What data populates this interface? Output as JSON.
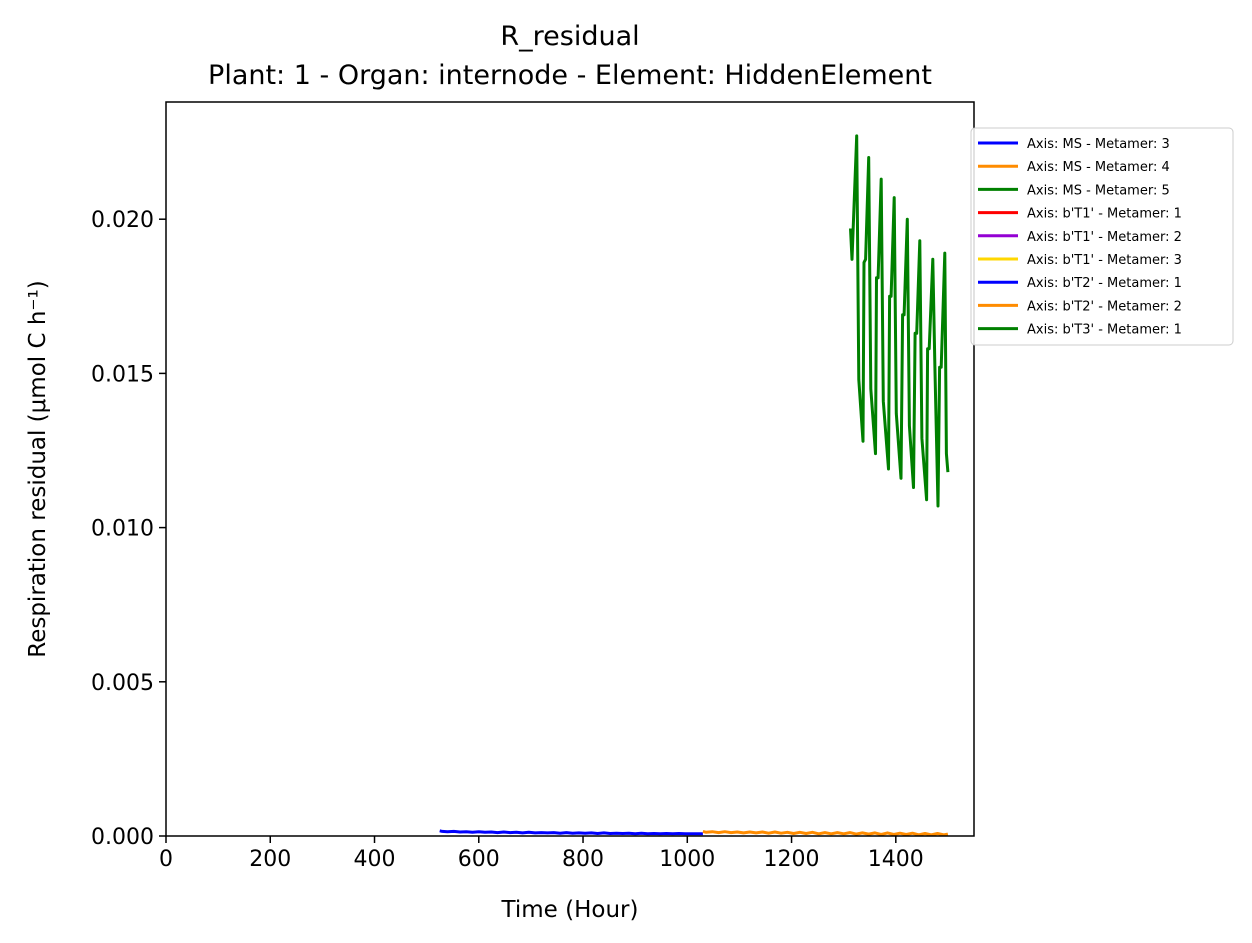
{
  "chart_data": {
    "type": "line",
    "title": "R_residual",
    "subtitle": "Plant: 1 - Organ: internode - Element: HiddenElement",
    "xlabel": "Time (Hour)",
    "ylabel": "Respiration residual (μmol C h⁻¹)",
    "xlim": [
      0,
      1550
    ],
    "ylim": [
      0,
      0.0238
    ],
    "xticks": [
      0,
      200,
      400,
      600,
      800,
      1000,
      1200,
      1400
    ],
    "xtick_labels": [
      "0",
      "200",
      "400",
      "600",
      "800",
      "1000",
      "1200",
      "1400"
    ],
    "yticks": [
      0,
      0.005,
      0.01,
      0.015,
      0.02
    ],
    "ytick_labels": [
      "0.000",
      "0.005",
      "0.010",
      "0.015",
      "0.020"
    ],
    "grid": false,
    "legend_position": "outside top-right",
    "series": [
      {
        "name": "Axis: MS - Metamer: 3",
        "color": "#0000ff",
        "points": [
          [
            525,
            0.00017
          ],
          [
            530,
            0.00015
          ],
          [
            540,
            0.00014
          ],
          [
            552,
            0.00015
          ],
          [
            564,
            0.00013
          ],
          [
            576,
            0.00014
          ],
          [
            588,
            0.00012
          ],
          [
            600,
            0.00014
          ],
          [
            612,
            0.00012
          ],
          [
            624,
            0.00013
          ],
          [
            636,
            0.00011
          ],
          [
            648,
            0.00013
          ],
          [
            660,
            0.00011
          ],
          [
            672,
            0.00012
          ],
          [
            684,
            0.0001
          ],
          [
            696,
            0.00012
          ],
          [
            708,
            0.0001
          ],
          [
            720,
            0.00011
          ],
          [
            732,
            0.0001
          ],
          [
            744,
            0.00011
          ],
          [
            756,
            9e-05
          ],
          [
            768,
            0.00011
          ],
          [
            780,
            9e-05
          ],
          [
            792,
            0.0001
          ],
          [
            804,
            9e-05
          ],
          [
            816,
            0.0001
          ],
          [
            828,
            8e-05
          ],
          [
            840,
            0.0001
          ],
          [
            852,
            8e-05
          ],
          [
            864,
            9e-05
          ],
          [
            876,
            8e-05
          ],
          [
            888,
            9e-05
          ],
          [
            900,
            7e-05
          ],
          [
            912,
            9e-05
          ],
          [
            924,
            7e-05
          ],
          [
            936,
            8e-05
          ],
          [
            948,
            7e-05
          ],
          [
            960,
            8e-05
          ],
          [
            972,
            7e-05
          ],
          [
            984,
            8e-05
          ],
          [
            996,
            7e-05
          ],
          [
            1008,
            7e-05
          ],
          [
            1020,
            7e-05
          ],
          [
            1030,
            7e-05
          ]
        ]
      },
      {
        "name": "Axis: MS - Metamer: 4",
        "color": "#ff8c00",
        "points": [
          [
            1030,
            0.00015
          ],
          [
            1036,
            0.00012
          ],
          [
            1048,
            0.00014
          ],
          [
            1060,
            0.00011
          ],
          [
            1072,
            0.00014
          ],
          [
            1084,
            0.00011
          ],
          [
            1096,
            0.00013
          ],
          [
            1108,
            0.0001
          ],
          [
            1120,
            0.00013
          ],
          [
            1132,
            0.0001
          ],
          [
            1144,
            0.00013
          ],
          [
            1156,
            9e-05
          ],
          [
            1168,
            0.00013
          ],
          [
            1180,
            9e-05
          ],
          [
            1192,
            0.00012
          ],
          [
            1204,
            8e-05
          ],
          [
            1216,
            0.00012
          ],
          [
            1228,
            8e-05
          ],
          [
            1240,
            0.00012
          ],
          [
            1252,
            7e-05
          ],
          [
            1264,
            0.00011
          ],
          [
            1276,
            7e-05
          ],
          [
            1288,
            0.00011
          ],
          [
            1300,
            7e-05
          ],
          [
            1312,
            0.00011
          ],
          [
            1324,
            6e-05
          ],
          [
            1336,
            0.0001
          ],
          [
            1348,
            6e-05
          ],
          [
            1360,
            0.0001
          ],
          [
            1372,
            5e-05
          ],
          [
            1384,
            0.0001
          ],
          [
            1396,
            5e-05
          ],
          [
            1408,
            9e-05
          ],
          [
            1420,
            5e-05
          ],
          [
            1432,
            9e-05
          ],
          [
            1444,
            4e-05
          ],
          [
            1456,
            8e-05
          ],
          [
            1468,
            4e-05
          ],
          [
            1480,
            8e-05
          ],
          [
            1492,
            4e-05
          ],
          [
            1500,
            6e-05
          ]
        ]
      },
      {
        "name": "Axis: MS - Metamer: 5",
        "color": "#008000",
        "points": [
          [
            1313,
            0.0197
          ],
          [
            1316,
            0.0187
          ],
          [
            1325,
            0.0227
          ],
          [
            1329,
            0.0148
          ],
          [
            1337,
            0.0128
          ],
          [
            1339,
            0.0186
          ],
          [
            1342,
            0.0187
          ],
          [
            1348,
            0.022
          ],
          [
            1352,
            0.0145
          ],
          [
            1361,
            0.0124
          ],
          [
            1363,
            0.0181
          ],
          [
            1366,
            0.0181
          ],
          [
            1372,
            0.0213
          ],
          [
            1376,
            0.0141
          ],
          [
            1386,
            0.0119
          ],
          [
            1388,
            0.0175
          ],
          [
            1391,
            0.0175
          ],
          [
            1397,
            0.0207
          ],
          [
            1401,
            0.0137
          ],
          [
            1410,
            0.0116
          ],
          [
            1413,
            0.0169
          ],
          [
            1416,
            0.0169
          ],
          [
            1422,
            0.02
          ],
          [
            1426,
            0.0133
          ],
          [
            1434,
            0.0113
          ],
          [
            1437,
            0.0163
          ],
          [
            1440,
            0.0163
          ],
          [
            1446,
            0.0193
          ],
          [
            1450,
            0.0129
          ],
          [
            1459,
            0.0109
          ],
          [
            1461,
            0.0158
          ],
          [
            1464,
            0.0158
          ],
          [
            1471,
            0.0187
          ],
          [
            1475,
            0.0152
          ],
          [
            1481,
            0.0107
          ],
          [
            1484,
            0.0152
          ],
          [
            1487,
            0.0152
          ],
          [
            1494,
            0.0189
          ],
          [
            1497,
            0.0124
          ],
          [
            1500,
            0.0118
          ]
        ]
      },
      {
        "name": "Axis: b'T1' - Metamer: 1",
        "color": "#ff0000",
        "points": []
      },
      {
        "name": "Axis: b'T1' - Metamer: 2",
        "color": "#9400d3",
        "points": []
      },
      {
        "name": "Axis: b'T1' - Metamer: 3",
        "color": "#ffd700",
        "points": []
      },
      {
        "name": "Axis: b'T2' - Metamer: 1",
        "color": "#0000ff",
        "points": []
      },
      {
        "name": "Axis: b'T2' - Metamer: 2",
        "color": "#ff8c00",
        "points": []
      },
      {
        "name": "Axis: b'T3' - Metamer: 1",
        "color": "#008000",
        "points": []
      }
    ]
  }
}
